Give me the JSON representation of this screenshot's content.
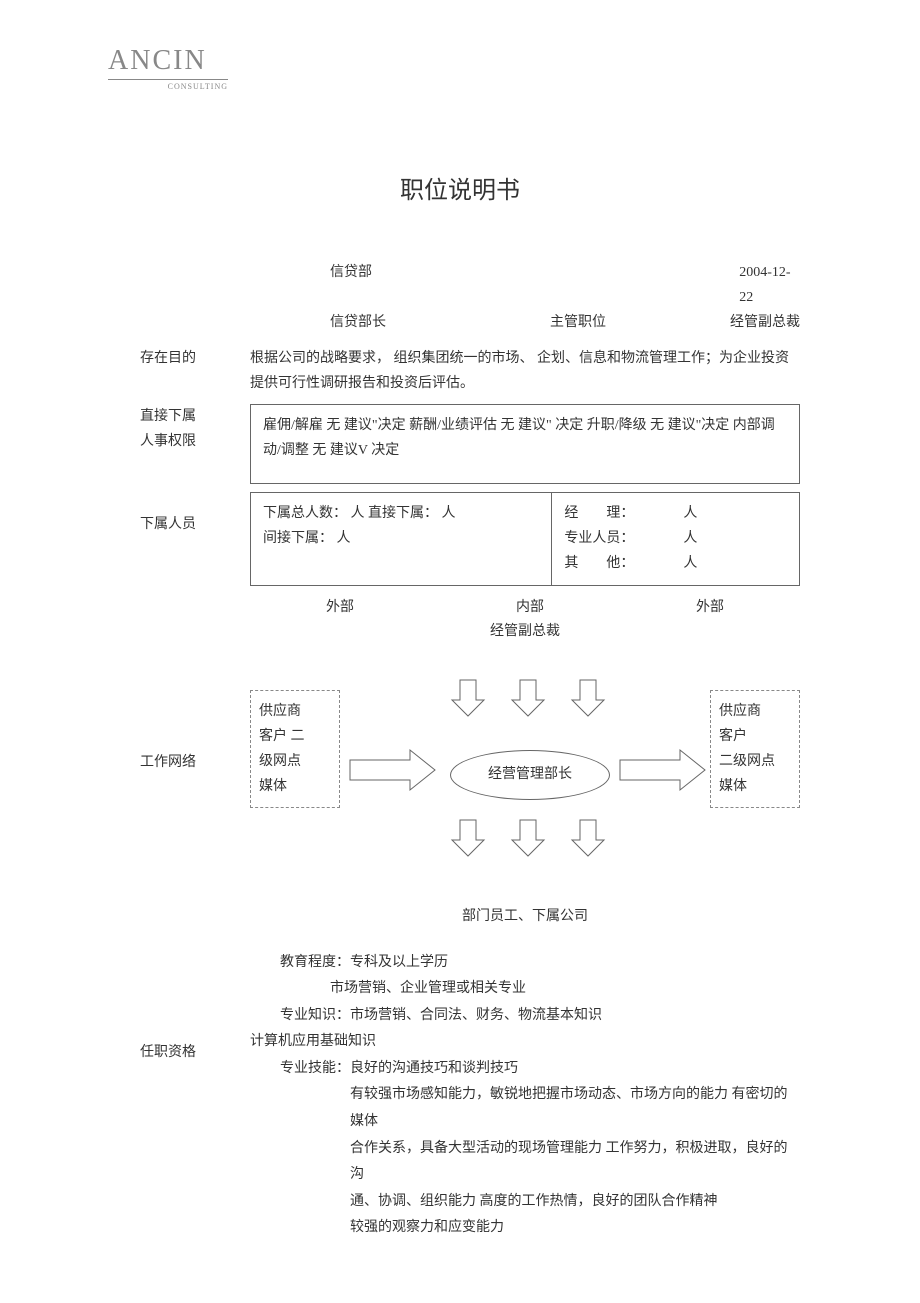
{
  "logo": {
    "main": "ANCIN",
    "sub": "CONSULTING"
  },
  "title": "职位说明书",
  "header": {
    "dept": "信贷部",
    "date": "2004-12-22",
    "position": "信贷部长",
    "supervisor_label": "主管职位",
    "supervisor_value": "经管副总裁"
  },
  "sections": {
    "purpose": {
      "label": "存在目的",
      "text": "根据公司的战略要求， 组织集团统一的市场、 企划、信息和物流管理工作；为企业投资提供可行性调研报告和投资后评估。"
    },
    "authority": {
      "label1": "直接下属",
      "label2": "人事权限",
      "text": "雇佣/解雇  无  建议\"决定  薪酬/业绩评估  无  建议\"  决定  升职/降级  无  建议\"决定  内部调动/调整  无  建议V  决定"
    },
    "subordinates": {
      "label": "下属人员",
      "left_line1": "下属总人数：  人  直接下属：  人",
      "left_line2": "间接下属：  人",
      "right_line1": "经　　理：　　　　人",
      "right_line2": "专业人员：　　　　人",
      "right_line3": "其　　他：　　　　人"
    },
    "network": {
      "label": "工作网络",
      "col1": "外部",
      "col2": "内部",
      "col3": "外部",
      "sub_header": "经管副总裁",
      "left_box": [
        "供应商",
        "客户 二",
        "级网点",
        "媒体"
      ],
      "right_box": [
        "供应商",
        "客户",
        "二级网点",
        "媒体"
      ],
      "center": "经营管理部长",
      "bottom": "部门员工、下属公司"
    },
    "qualifications": {
      "label": "任职资格",
      "lines": [
        {
          "indent": "indent1",
          "text": "教育程度：专科及以上学历"
        },
        {
          "indent": "indent2",
          "text": "市场营销、企业管理或相关专业"
        },
        {
          "indent": "indent1",
          "text": "专业知识：市场营销、合同法、财务、物流基本知识"
        },
        {
          "indent": "",
          "text": "计算机应用基础知识"
        },
        {
          "indent": "indent1",
          "text": "专业技能：良好的沟通技巧和谈判技巧"
        },
        {
          "indent": "indent3",
          "text": "有较强市场感知能力，敏锐地把握市场动态、市场方向的能力 有密切的媒体"
        },
        {
          "indent": "indent3",
          "text": "合作关系，具备大型活动的现场管理能力 工作努力，积极进取，良好的沟"
        },
        {
          "indent": "indent3",
          "text": "通、协调、组织能力 高度的工作热情，良好的团队合作精神"
        },
        {
          "indent": "indent3",
          "text": "较强的观察力和应变能力"
        }
      ]
    }
  },
  "colors": {
    "text": "#333333",
    "border": "#666666",
    "dashed": "#888888",
    "logo": "#888888",
    "bg": "#ffffff"
  },
  "fonts": {
    "body_size": 14,
    "title_size": 24,
    "logo_size": 28
  }
}
